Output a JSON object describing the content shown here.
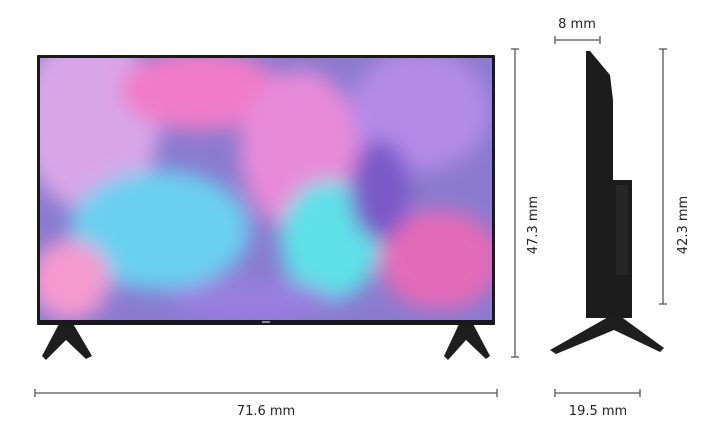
{
  "dimensions": {
    "width": "71.6 mm",
    "height_with_stand": "47.3 mm",
    "height_without_stand": "42.3 mm",
    "depth_panel": "8 mm",
    "depth_with_stand": "19.5 mm"
  },
  "colors": {
    "dimension_line": "#555555",
    "tv_body": "#1c1c1c",
    "screen_pink": "#e88ad8",
    "screen_cyan": "#5fe0e8",
    "screen_purple": "#8a6ad8"
  }
}
